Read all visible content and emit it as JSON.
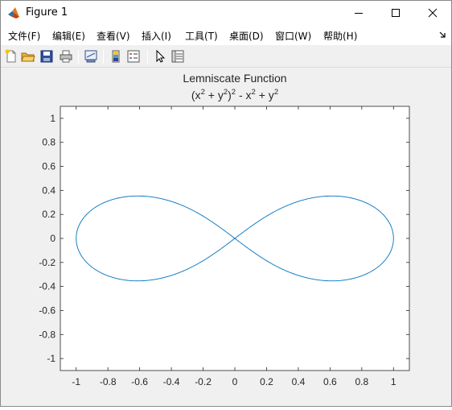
{
  "window": {
    "title": "Figure 1",
    "icon": "matlab-icon",
    "controls": [
      "minimize-icon",
      "maximize-icon",
      "close-icon"
    ]
  },
  "menu": {
    "items": [
      {
        "label": "文件(F)"
      },
      {
        "label": "编辑(E)"
      },
      {
        "label": "查看(V)"
      },
      {
        "label": "插入(I)"
      },
      {
        "label": "工具(T)"
      },
      {
        "label": "桌面(D)"
      },
      {
        "label": "窗口(W)"
      },
      {
        "label": "帮助(H)"
      }
    ]
  },
  "toolbar": {
    "buttons": [
      "new-figure-icon",
      "open-file-icon",
      "save-icon",
      "print-icon",
      "link-plot-icon",
      "insert-colorbar-icon",
      "insert-legend-icon",
      "edit-plot-arrow-icon",
      "property-inspector-icon"
    ]
  },
  "chart_data": {
    "type": "line",
    "title": "Lemniscate Function",
    "subtitle_base": [
      "(x",
      " + y",
      ")",
      " - x",
      " + y"
    ],
    "subtitle_sup": [
      "2",
      "2",
      "2",
      "2",
      "2"
    ],
    "xlabel": "",
    "ylabel": "",
    "xlim": [
      -1.1,
      1.1
    ],
    "ylim": [
      -1.1,
      1.1
    ],
    "xticks": [
      -1,
      -0.8,
      -0.6,
      -0.4,
      -0.2,
      0,
      0.2,
      0.4,
      0.6,
      0.8,
      1
    ],
    "yticks": [
      -1,
      -0.8,
      -0.6,
      -0.4,
      -0.2,
      0,
      0.2,
      0.4,
      0.6,
      0.8,
      1
    ],
    "xtick_labels": [
      "-1",
      "-0.8",
      "-0.6",
      "-0.4",
      "-0.2",
      "0",
      "0.2",
      "0.4",
      "0.6",
      "0.8",
      "1"
    ],
    "ytick_labels": [
      "-1",
      "-0.8",
      "-0.6",
      "-0.4",
      "-0.2",
      "0",
      "0.2",
      "0.4",
      "0.6",
      "0.8",
      "1"
    ],
    "grid": false,
    "series": [
      {
        "color": "#0072BD",
        "curve": "lemniscate of Bernoulli (x^2 + y^2)^2 = x^2 - y^2",
        "x_extent": [
          -1,
          1
        ],
        "y_extent": [
          -0.354,
          0.354
        ]
      }
    ]
  }
}
